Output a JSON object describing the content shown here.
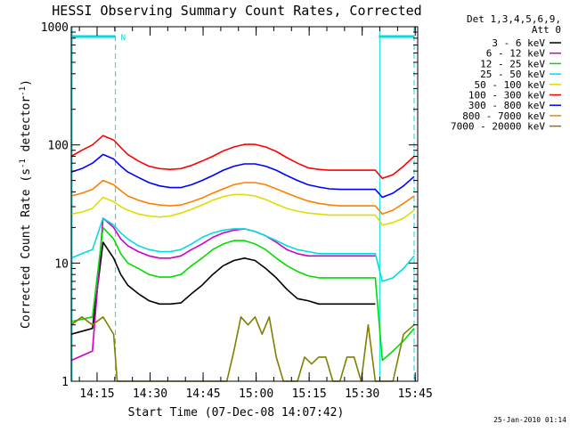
{
  "chart_data": {
    "type": "line",
    "title": "HESSI Observing Summary Count Rates, Corrected",
    "xlabel": "Start Time (07-Dec-08 14:07:42)",
    "ylabel_main": "Corrected Count Rate (s",
    "ylabel_exp1": "-1",
    "ylabel_mid": " detector",
    "ylabel_exp2": "-1",
    "ylabel_end": ")",
    "yscale": "log",
    "ylim": [
      1,
      1000
    ],
    "xlim_minutes": [
      0,
      98
    ],
    "x_ticks": [
      "14:15",
      "14:30",
      "14:45",
      "15:00",
      "15:15",
      "15:30",
      "15:45"
    ],
    "x_tick_minutes": [
      7.3,
      22.3,
      37.3,
      52.3,
      67.3,
      82.3,
      97.3
    ],
    "y_ticks": [
      "1",
      "10",
      "100",
      "1000"
    ],
    "y_tick_values": [
      1,
      10,
      100,
      1000
    ],
    "legend_header": [
      "Det 1,3,4,5,6,9,",
      "Att 0"
    ],
    "legend_position": "right",
    "night_marker_label": "N",
    "night_intervals_minutes": [
      [
        0,
        12.5
      ],
      [
        87,
        97
      ]
    ],
    "series": [
      {
        "name": "3 - 6 keV",
        "color": "#000000",
        "x": [
          0,
          6,
          9,
          12,
          14,
          16,
          19,
          22,
          25,
          28,
          31,
          34,
          37,
          40,
          43,
          46,
          49,
          52,
          55,
          58,
          61,
          64,
          67,
          70,
          73,
          76,
          80,
          84,
          86
        ],
        "y": [
          2.5,
          2.8,
          15,
          11,
          8,
          6.5,
          5.5,
          4.8,
          4.5,
          4.5,
          4.6,
          5.5,
          6.5,
          8,
          9.5,
          10.5,
          11,
          10.5,
          9,
          7.5,
          6,
          5,
          4.8,
          4.5,
          4.5,
          4.5,
          4.5,
          4.5,
          4.5
        ]
      },
      {
        "name": "6 - 12 keV",
        "color": "#cc00cc",
        "x": [
          0,
          6,
          9,
          12,
          14,
          16,
          19,
          22,
          25,
          28,
          31,
          34,
          37,
          40,
          43,
          46,
          49,
          52,
          55,
          58,
          61,
          64,
          67,
          70,
          73,
          76,
          80,
          84,
          86
        ],
        "y": [
          1.5,
          1.8,
          24,
          20,
          16,
          14,
          12.5,
          11.5,
          11,
          11,
          11.5,
          13,
          14.5,
          16.5,
          18,
          19,
          19.5,
          18.5,
          17,
          15,
          13,
          12,
          11.5,
          11.5,
          11.5,
          11.5,
          11.5,
          11.5,
          11.5
        ]
      },
      {
        "name": "12 - 25 keV",
        "color": "#00dd00",
        "x": [
          0,
          6,
          9,
          12,
          14,
          16,
          19,
          22,
          25,
          28,
          31,
          34,
          37,
          40,
          43,
          46,
          49,
          52,
          55,
          58,
          61,
          64,
          67,
          70,
          73,
          76,
          80,
          84,
          86,
          88,
          91,
          94,
          97
        ],
        "y": [
          3.2,
          3.5,
          20,
          16,
          12,
          10,
          9,
          8,
          7.6,
          7.6,
          8,
          9.5,
          11,
          13,
          14.5,
          15.5,
          15.5,
          14.5,
          13,
          11,
          9.5,
          8.5,
          7.8,
          7.5,
          7.5,
          7.5,
          7.5,
          7.5,
          7.5,
          1.5,
          1.8,
          2.2,
          2.8
        ]
      },
      {
        "name": "25 - 50 keV",
        "color": "#00dddd",
        "x": [
          0,
          3,
          6,
          9,
          12,
          14,
          16,
          19,
          22,
          25,
          28,
          31,
          34,
          37,
          40,
          43,
          46,
          49,
          52,
          55,
          58,
          61,
          64,
          67,
          70,
          73,
          76,
          80,
          84,
          86,
          88,
          91,
          94,
          97
        ],
        "y": [
          11,
          12,
          13,
          24,
          21,
          18,
          16,
          14,
          13,
          12.5,
          12.5,
          13,
          14.5,
          16.5,
          18,
          19,
          19.5,
          19.5,
          18.5,
          17,
          15.5,
          14,
          13,
          12.5,
          12,
          12,
          12,
          12,
          12,
          12,
          7,
          7.5,
          9,
          11.5
        ]
      },
      {
        "name": "50 - 100 keV",
        "color": "#dddd00",
        "x": [
          0,
          3,
          6,
          9,
          12,
          14,
          16,
          19,
          22,
          25,
          28,
          31,
          34,
          37,
          40,
          43,
          46,
          49,
          52,
          55,
          58,
          61,
          64,
          67,
          70,
          73,
          76,
          80,
          84,
          86,
          88,
          91,
          94,
          97
        ],
        "y": [
          26,
          27,
          29,
          36,
          33,
          30,
          28,
          26,
          25,
          24.5,
          25,
          26.5,
          28.5,
          31,
          34,
          36.5,
          38,
          38,
          37,
          34.5,
          31.5,
          29,
          27.5,
          26.5,
          26,
          25.5,
          25.5,
          25.5,
          25.5,
          25.5,
          21,
          22,
          24,
          28
        ]
      },
      {
        "name": "100 - 300 keV",
        "color": "#ff0000",
        "x": [
          0,
          3,
          6,
          9,
          12,
          14,
          16,
          19,
          22,
          25,
          28,
          31,
          34,
          37,
          40,
          43,
          46,
          49,
          52,
          55,
          58,
          61,
          64,
          67,
          70,
          73,
          76,
          80,
          84,
          86,
          88,
          91,
          94,
          97
        ],
        "y": [
          80,
          90,
          100,
          120,
          110,
          95,
          83,
          73,
          66,
          63,
          62,
          63,
          67,
          73,
          80,
          89,
          96,
          101,
          101,
          96,
          88,
          78,
          70,
          64,
          62,
          61,
          61,
          61,
          61,
          61,
          52,
          56,
          66,
          80
        ]
      },
      {
        "name": "300 - 800 keV",
        "color": "#0000ff",
        "x": [
          0,
          3,
          6,
          9,
          12,
          14,
          16,
          19,
          22,
          25,
          28,
          31,
          34,
          37,
          40,
          43,
          46,
          49,
          52,
          55,
          58,
          61,
          64,
          67,
          70,
          73,
          76,
          80,
          84,
          86,
          88,
          91,
          94,
          97
        ],
        "y": [
          59,
          63,
          70,
          83,
          76,
          66,
          59,
          53,
          48,
          45,
          43.5,
          43.5,
          46,
          50,
          55,
          61,
          66,
          69,
          69,
          66,
          61,
          55,
          50,
          46,
          44,
          42.5,
          42,
          42,
          42,
          42,
          36,
          39,
          45,
          54
        ]
      },
      {
        "name": "800 - 7000 keV",
        "color": "#ff8000",
        "x": [
          0,
          3,
          6,
          9,
          12,
          14,
          16,
          19,
          22,
          25,
          28,
          31,
          34,
          37,
          40,
          43,
          46,
          49,
          52,
          55,
          58,
          61,
          64,
          67,
          70,
          73,
          76,
          80,
          84,
          86,
          88,
          91,
          94,
          97
        ],
        "y": [
          37,
          39,
          42,
          50,
          46,
          41,
          37,
          34,
          32,
          31,
          30.5,
          31,
          33,
          35.5,
          39,
          42.5,
          46,
          48,
          48,
          46,
          42.5,
          39,
          36,
          33.5,
          32,
          31,
          30.5,
          30.5,
          30.5,
          30.5,
          26,
          28,
          32,
          37
        ]
      },
      {
        "name": "7000 - 20000 keV",
        "color": "#808000",
        "x": [
          0,
          3,
          6,
          9,
          12,
          13,
          15,
          18,
          22,
          26,
          30,
          34,
          38,
          42,
          44,
          46,
          48,
          50,
          52,
          54,
          56,
          58,
          60,
          62,
          64,
          66,
          68,
          70,
          72,
          74,
          76,
          78,
          80,
          82,
          84,
          86,
          88,
          91,
          94,
          97
        ],
        "y": [
          3,
          3.5,
          3,
          3.5,
          2.5,
          1,
          1,
          1,
          1,
          1,
          1,
          1,
          1,
          1,
          1,
          1.8,
          3.5,
          3,
          3.5,
          2.5,
          3.5,
          1.6,
          1,
          1,
          1,
          1.6,
          1.4,
          1.6,
          1.6,
          1,
          1,
          1.6,
          1.6,
          1,
          3,
          1,
          1,
          1,
          2.5,
          3
        ]
      }
    ]
  },
  "footer": {
    "date_stamp": "25-Jan-2010 01:14"
  }
}
